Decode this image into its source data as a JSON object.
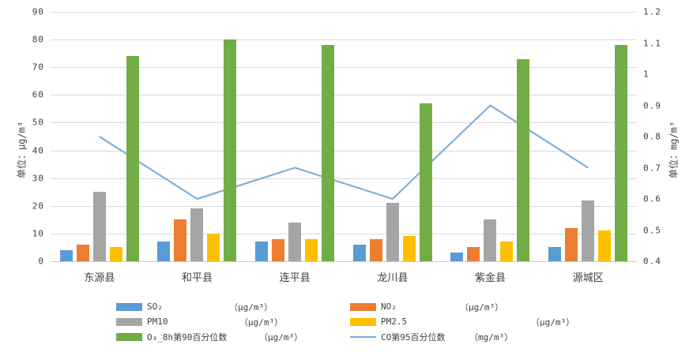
{
  "chart_data": {
    "type": "bar",
    "subtype": "grouped-bars-with-line-dual-axis",
    "title": "",
    "categories": [
      "东源县",
      "和平县",
      "连平县",
      "龙川县",
      "紫金县",
      "源城区"
    ],
    "series": [
      {
        "name": "SO₂",
        "unit": "（μg/m³）",
        "type": "bar",
        "axis": "left",
        "color": "#5b9bd5",
        "values": [
          4,
          7,
          7,
          6,
          3,
          5
        ]
      },
      {
        "name": "NO₂",
        "unit": "（μg/m³）",
        "type": "bar",
        "axis": "left",
        "color": "#ed7d31",
        "values": [
          6,
          15,
          8,
          8,
          5,
          12
        ]
      },
      {
        "name": "PM10",
        "unit": "（μg/m³）",
        "type": "bar",
        "axis": "left",
        "color": "#a5a5a5",
        "values": [
          25,
          19,
          14,
          21,
          15,
          22
        ]
      },
      {
        "name": "PM2.5",
        "unit": "（μg/m³）",
        "type": "bar",
        "axis": "left",
        "color": "#ffc000",
        "values": [
          5,
          10,
          8,
          9,
          7,
          11
        ]
      },
      {
        "name": "O₃_8h第90百分位数",
        "unit": "（μg/m³）",
        "type": "bar",
        "axis": "left",
        "color": "#70ad47",
        "values": [
          74,
          80,
          78,
          57,
          73,
          78
        ]
      },
      {
        "name": "CO第95百分位数",
        "unit": "（mg/m³）",
        "type": "line",
        "axis": "right",
        "color": "#7cafdd",
        "values": [
          0.8,
          0.6,
          0.7,
          0.6,
          0.9,
          0.7
        ]
      }
    ],
    "left_axis": {
      "label": "单位：μg/m³",
      "min": 0,
      "max": 90,
      "ticks": [
        "90",
        "80",
        "70",
        "60",
        "50",
        "40",
        "30",
        "20",
        "10",
        "0"
      ]
    },
    "right_axis": {
      "label": "单位：mg/m³",
      "min": 0.4,
      "max": 1.2,
      "ticks": [
        "1.2",
        "1.1",
        "1",
        "0.9",
        "0.8",
        "0.7",
        "0.6",
        "0.5",
        "0.4"
      ]
    },
    "grid": true,
    "legend_position": "bottom-two-columns",
    "colors": {
      "gridline": "#d9d9d9",
      "text": "#404040"
    }
  }
}
